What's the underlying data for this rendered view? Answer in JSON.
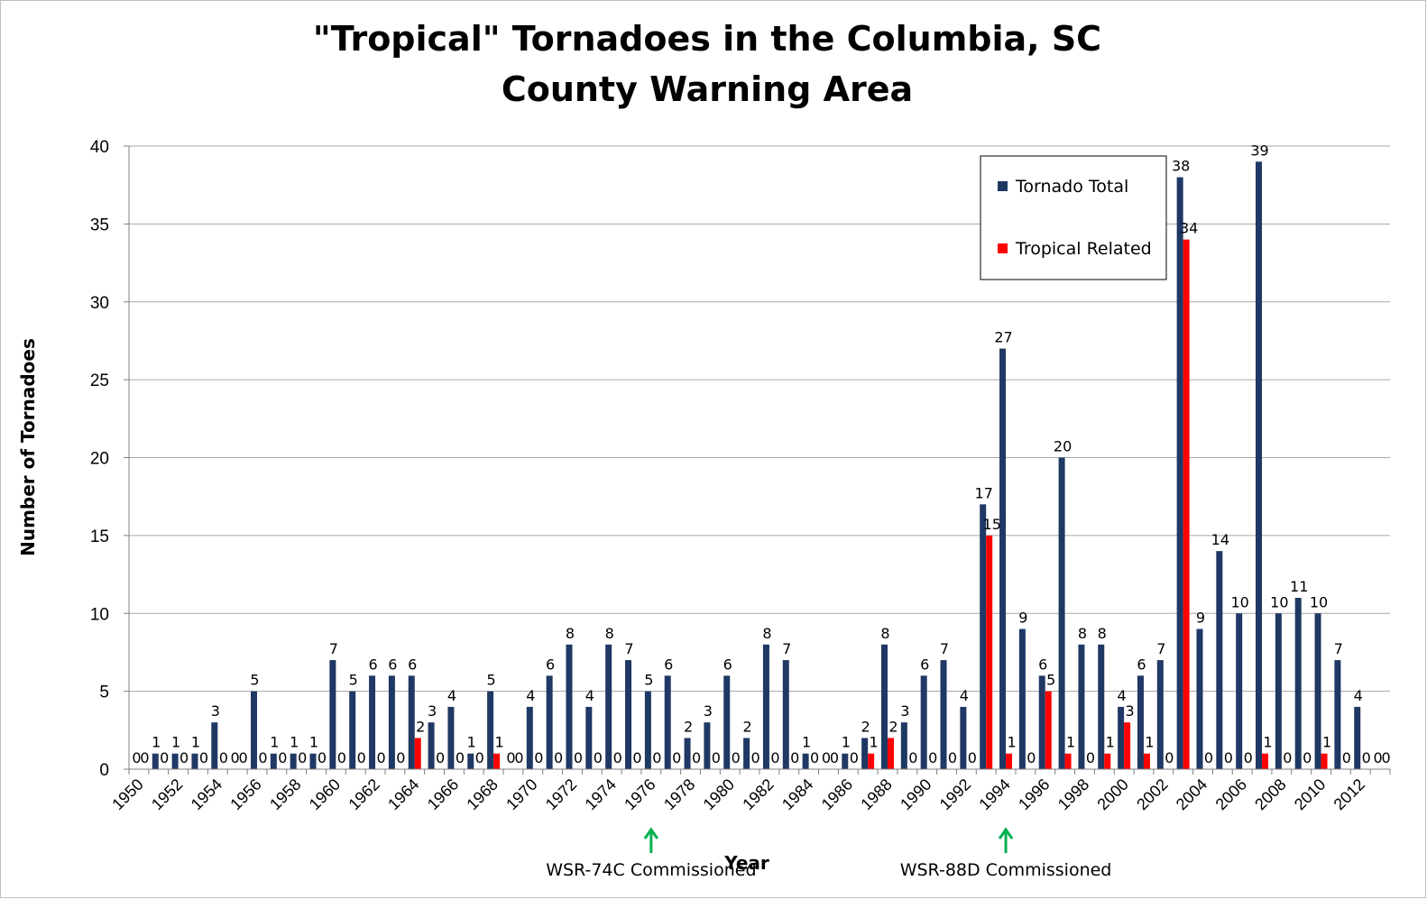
{
  "chart_data": {
    "type": "bar",
    "title_lines": [
      "\"Tropical\" Tornadoes in the Columbia, SC",
      "County Warning Area"
    ],
    "xlabel": "Year",
    "ylabel": "Number of Tornadoes",
    "ylim": [
      0,
      40
    ],
    "yticks": [
      0,
      5,
      10,
      15,
      20,
      25,
      30,
      35,
      40
    ],
    "grid": true,
    "legend_position": "top-right",
    "categories": [
      1950,
      1951,
      1952,
      1953,
      1954,
      1955,
      1956,
      1957,
      1958,
      1959,
      1960,
      1961,
      1962,
      1963,
      1964,
      1965,
      1966,
      1967,
      1968,
      1969,
      1970,
      1971,
      1972,
      1973,
      1974,
      1975,
      1976,
      1977,
      1978,
      1979,
      1980,
      1981,
      1982,
      1983,
      1984,
      1985,
      1986,
      1987,
      1988,
      1989,
      1990,
      1991,
      1992,
      1993,
      1994,
      1995,
      1996,
      1997,
      1998,
      1999,
      2000,
      2001,
      2002,
      2003,
      2004,
      2005,
      2006,
      2007,
      2008,
      2009,
      2010,
      2011,
      2012,
      2013
    ],
    "xtick_labels": [
      "1950",
      "1952",
      "1954",
      "1956",
      "1958",
      "1960",
      "1962",
      "1964",
      "1966",
      "1968",
      "1970",
      "1972",
      "1974",
      "1976",
      "1978",
      "1980",
      "1982",
      "1984",
      "1986",
      "1988",
      "1990",
      "1992",
      "1994",
      "1996",
      "1998",
      "2000",
      "2002",
      "2004",
      "2006",
      "2008",
      "2010",
      "2012"
    ],
    "series": [
      {
        "name": "Tornado Total",
        "color": "#1f3864",
        "values": [
          0,
          1,
          1,
          1,
          3,
          0,
          5,
          1,
          1,
          1,
          7,
          5,
          6,
          6,
          6,
          3,
          4,
          1,
          5,
          0,
          4,
          6,
          8,
          4,
          8,
          7,
          5,
          6,
          2,
          3,
          6,
          2,
          8,
          7,
          1,
          0,
          1,
          2,
          8,
          3,
          6,
          7,
          4,
          17,
          27,
          9,
          6,
          20,
          8,
          8,
          4,
          6,
          7,
          38,
          9,
          14,
          10,
          39,
          10,
          11,
          10,
          7,
          4,
          0
        ]
      },
      {
        "name": "Tropical Related",
        "color": "#ff0000",
        "values": [
          0,
          0,
          0,
          0,
          0,
          0,
          0,
          0,
          0,
          0,
          0,
          0,
          0,
          0,
          2,
          0,
          0,
          0,
          1,
          0,
          0,
          0,
          0,
          0,
          0,
          0,
          0,
          0,
          0,
          0,
          0,
          0,
          0,
          0,
          0,
          0,
          0,
          1,
          2,
          0,
          0,
          0,
          0,
          15,
          1,
          0,
          5,
          1,
          0,
          1,
          3,
          1,
          0,
          34,
          0,
          0,
          0,
          1,
          0,
          0,
          1,
          0,
          0,
          0
        ]
      }
    ],
    "annotations": [
      {
        "text": "WSR-74C Commissioned",
        "year": 1976,
        "arrow_color": "#00b050"
      },
      {
        "text": "WSR-88D Commissioned",
        "year": 1994,
        "arrow_color": "#00b050"
      }
    ]
  }
}
